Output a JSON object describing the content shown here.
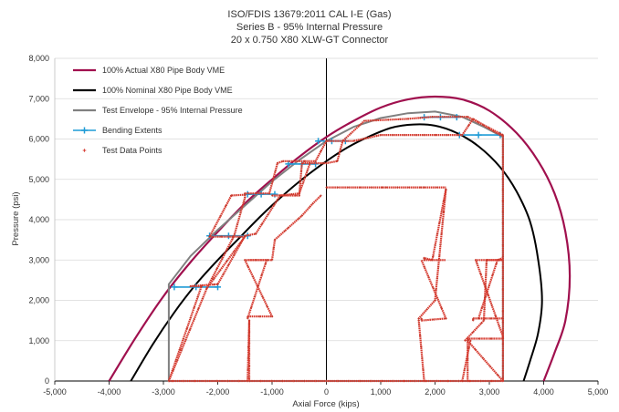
{
  "chart_data": {
    "type": "scatter",
    "title": [
      "ISO/FDIS 13679:2011 CAL I-E (Gas)",
      "Series B - 95% Internal Pressure",
      "20 x 0.750 X80 XLW-GT Connector"
    ],
    "xlabel": "Axial Force (kips)",
    "ylabel": "Pressure (psi)",
    "xlim": [
      -5000,
      5000
    ],
    "ylim": [
      0,
      8000
    ],
    "x_ticks": [
      -5000,
      -4000,
      -3000,
      -2000,
      -1000,
      0,
      1000,
      2000,
      3000,
      4000,
      5000
    ],
    "y_ticks": [
      0,
      1000,
      2000,
      3000,
      4000,
      5000,
      6000,
      7000,
      8000
    ],
    "x_tick_labels": [
      "-5,000",
      "-4,000",
      "-3,000",
      "-2,000",
      "-1,000",
      "0",
      "1,000",
      "2,000",
      "3,000",
      "4,000",
      "5,000"
    ],
    "y_tick_labels": [
      "0",
      "1,000",
      "2,000",
      "3,000",
      "4,000",
      "5,000",
      "6,000",
      "7,000",
      "8,000"
    ],
    "grid": "horizontal",
    "legend_position": "top-left",
    "series": [
      {
        "name": "100% Actual X80 Pipe Body VME",
        "style": "line",
        "color": "#a0104e",
        "x": [
          -4000,
          -3500,
          -3000,
          -2500,
          -2000,
          -1500,
          -1000,
          -500,
          0,
          500,
          1000,
          1500,
          2000,
          2500,
          3000,
          3500,
          3900,
          4200,
          4400,
          4480,
          4400,
          4200,
          4000
        ],
        "y": [
          0,
          1100,
          2100,
          2950,
          3700,
          4400,
          5000,
          5560,
          6050,
          6450,
          6780,
          6980,
          7050,
          6980,
          6700,
          6150,
          5450,
          4650,
          3700,
          2600,
          1500,
          700,
          0
        ]
      },
      {
        "name": "100% Nominal X80 Pipe Body VME",
        "style": "line",
        "color": "#000000",
        "x": [
          -3600,
          -3200,
          -2800,
          -2400,
          -2000,
          -1600,
          -1200,
          -800,
          -400,
          0,
          400,
          800,
          1200,
          1600,
          2000,
          2400,
          2800,
          3200,
          3500,
          3750,
          3900,
          3970,
          3900,
          3750,
          3630
        ],
        "y": [
          0,
          900,
          1700,
          2400,
          3000,
          3550,
          4100,
          4600,
          5050,
          5450,
          5800,
          6070,
          6280,
          6360,
          6330,
          6150,
          5820,
          5300,
          4700,
          3950,
          3000,
          2000,
          1200,
          500,
          0
        ]
      },
      {
        "name": "Test Envelope - 95% Internal Pressure",
        "style": "line",
        "color": "#808080",
        "x": [
          -2900,
          -2900,
          -2500,
          -2000,
          -1500,
          -1000,
          -500,
          0,
          500,
          1000,
          1500,
          2000,
          2500,
          2900,
          3250,
          3250,
          3250
        ],
        "y": [
          0,
          2400,
          3100,
          3750,
          4350,
          4950,
          5480,
          5950,
          6300,
          6520,
          6640,
          6680,
          6550,
          6300,
          6050,
          3000,
          0
        ]
      },
      {
        "name": "Bending Extents",
        "style": "line-marker",
        "color": "#1f9bd6",
        "segments": [
          {
            "x": [
              -2800,
              -2400,
              -2000
            ],
            "y": [
              2330,
              2330,
              2330
            ]
          },
          {
            "x": [
              -2150,
              -1800,
              -1450
            ],
            "y": [
              3600,
              3600,
              3600
            ]
          },
          {
            "x": [
              -1450,
              -1200,
              -950
            ],
            "y": [
              4630,
              4630,
              4630
            ]
          },
          {
            "x": [
              -700,
              -450,
              -200
            ],
            "y": [
              5380,
              5380,
              5380
            ]
          },
          {
            "x": [
              -150,
              100,
              350
            ],
            "y": [
              5950,
              5950,
              5950
            ]
          },
          {
            "x": [
              1800,
              2100,
              2400
            ],
            "y": [
              6540,
              6540,
              6540
            ]
          },
          {
            "x": [
              2450,
              2800,
              3200
            ],
            "y": [
              6100,
              6100,
              6100
            ]
          }
        ]
      },
      {
        "name": "Test Data Points",
        "style": "dense-path",
        "color": "#d63a2f",
        "paths": [
          {
            "x": [
              -2900,
              -2200,
              -1700,
              -1500,
              -1500,
              -1300,
              -1050,
              -900,
              -800,
              -600,
              -400,
              -200,
              0,
              100,
              300,
              700,
              1500,
              1950,
              2600,
              3250,
              3250,
              -2900
            ],
            "y": [
              0,
              2300,
              3600,
              4550,
              4650,
              4650,
              4650,
              5400,
              5450,
              5450,
              5450,
              5450,
              5950,
              5950,
              5950,
              6450,
              6500,
              6550,
              6550,
              6100,
              0,
              0
            ]
          },
          {
            "x": [
              -2900,
              -2300,
              -2500,
              -2000,
              -1500,
              -1300,
              -850,
              -500,
              -300,
              0,
              200,
              300,
              500,
              1000,
              1800,
              2500,
              2700,
              3200,
              3250
            ],
            "y": [
              0,
              2350,
              2350,
              2400,
              3600,
              3650,
              4600,
              4650,
              5400,
              5400,
              5450,
              5950,
              5950,
              6100,
              6100,
              6100,
              6500,
              6100,
              6100
            ]
          },
          {
            "x": [
              -2200,
              -1500,
              -2150,
              -1750,
              -1500
            ],
            "y": [
              2300,
              3580,
              3580,
              4600,
              4620
            ]
          },
          {
            "x": [
              -1000,
              -500,
              -450,
              -300
            ],
            "y": [
              4600,
              4600,
              5400,
              5400
            ]
          },
          {
            "x": [
              -1450,
              -1420,
              -1420
            ],
            "y": [
              0,
              1500,
              0
            ]
          },
          {
            "x": [
              -1450,
              -1000,
              -1500,
              -1000,
              -950,
              -700,
              -450,
              -250,
              -100
            ],
            "y": [
              1600,
              1600,
              3000,
              3000,
              3500,
              3800,
              4100,
              4400,
              4600
            ]
          },
          {
            "x": [
              -1450,
              -1100,
              -1450
            ],
            "y": [
              1550,
              3000,
              3000
            ]
          },
          {
            "x": [
              0,
              1100,
              1800,
              2200
            ],
            "y": [
              4800,
              4800,
              4800,
              4800
            ]
          },
          {
            "x": [
              1800,
              1700,
              1700,
              2000,
              2200,
              1950,
              1800,
              1800,
              2200
            ],
            "y": [
              0,
              1500,
              1550,
              2000,
              4750,
              3000,
              3050,
              3000,
              3000
            ]
          },
          {
            "x": [
              1750,
              1750,
              2200,
              1750
            ],
            "y": [
              1550,
              1500,
              1550,
              3000
            ]
          },
          {
            "x": [
              2500,
              2650,
              2600,
              3250,
              3250,
              2750,
              3250
            ],
            "y": [
              0,
              1000,
              1050,
              1050,
              1100,
              3000,
              3000
            ]
          },
          {
            "x": [
              2700,
              2700,
              3250,
              2800,
              3150,
              3250
            ],
            "y": [
              1500,
              1550,
              1550,
              1550,
              3000,
              3050
            ]
          },
          {
            "x": [
              2550,
              2900,
              2950,
              3250
            ],
            "y": [
              1000,
              1500,
              3000,
              3000
            ]
          },
          {
            "x": [
              2600,
              2600,
              3250
            ],
            "y": [
              0,
              1000,
              0
            ]
          }
        ]
      }
    ]
  }
}
